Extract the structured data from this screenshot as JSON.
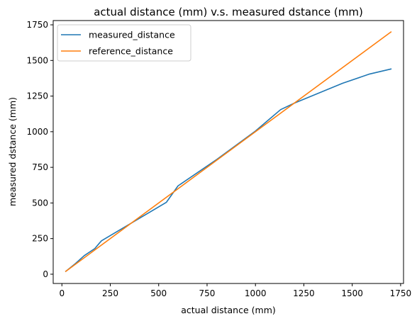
{
  "chart_data": {
    "type": "line",
    "title": "actual distance (mm) v.s. measured dstance (mm)",
    "xlabel": "actual distance (mm)",
    "ylabel": "measured dstance (mm)",
    "xlim": [
      -45,
      1765
    ],
    "ylim": [
      -65,
      1780
    ],
    "xticks": [
      0,
      250,
      500,
      750,
      1000,
      1250,
      1500,
      1750
    ],
    "yticks": [
      0,
      250,
      500,
      750,
      1000,
      1250,
      1500,
      1750
    ],
    "grid": false,
    "legend_position": "upper-left",
    "series": [
      {
        "name": "measured_distance",
        "color": "#1f77b4",
        "x": [
          20,
          70,
          115,
          170,
          195,
          205,
          540,
          600,
          800,
          1000,
          1130,
          1200,
          1450,
          1590,
          1700
        ],
        "y": [
          20,
          75,
          130,
          180,
          220,
          235,
          505,
          620,
          805,
          1005,
          1155,
          1200,
          1340,
          1405,
          1440
        ]
      },
      {
        "name": "reference_distance",
        "color": "#ff7f0e",
        "x": [
          20,
          1700
        ],
        "y": [
          20,
          1700
        ]
      }
    ]
  }
}
